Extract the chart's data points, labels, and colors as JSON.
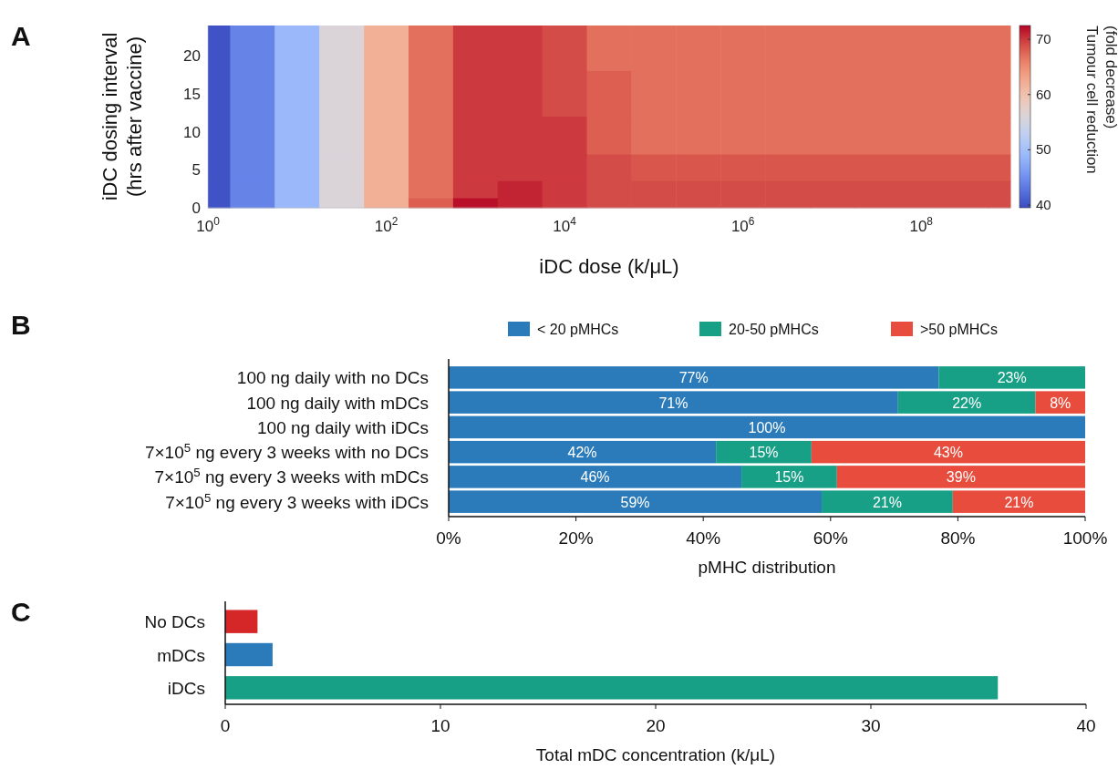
{
  "chart_data": [
    {
      "type": "heatmap",
      "annotations": [
        "A"
      ],
      "xlabel": "iDC dose (k/μL)",
      "ylabel": "iDC dosing interval (hrs after vaccine)",
      "clabel": "Tumour cell reduction (fold decrease)",
      "x": [
        1,
        3.16,
        10,
        31.6,
        100,
        316,
        1000,
        3160,
        10000,
        31600,
        100000,
        316000,
        1000000,
        3160000,
        10000000,
        31600000,
        100000000,
        316000000,
        1000000000
      ],
      "y": [
        21,
        15,
        9,
        5,
        2,
        0.5
      ],
      "cells": [
        [
          40,
          44,
          49,
          56,
          62,
          67,
          70,
          70,
          69,
          67,
          67,
          67,
          67,
          67,
          67,
          67,
          67,
          67,
          67
        ],
        [
          40,
          44,
          49,
          56,
          62,
          67,
          70,
          70,
          69,
          68,
          67,
          67,
          67,
          67,
          67,
          67,
          67,
          67,
          67
        ],
        [
          40,
          44,
          49,
          56,
          62,
          67,
          70,
          70,
          70,
          68,
          67,
          67,
          67,
          67,
          67,
          67,
          67,
          67,
          67
        ],
        [
          40,
          44,
          49,
          56,
          62,
          67,
          70,
          70,
          70,
          69,
          68.5,
          68.5,
          68.5,
          68.5,
          68.5,
          68.5,
          68.5,
          68.5,
          68.5
        ],
        [
          40,
          44,
          49,
          56,
          62,
          67,
          70,
          71,
          70,
          69,
          69,
          69,
          69,
          69,
          69,
          69,
          69,
          69,
          69
        ],
        [
          40,
          44,
          49,
          56,
          62,
          68,
          72,
          71,
          70,
          69,
          69,
          69,
          69,
          69,
          69,
          69,
          69,
          69,
          69
        ]
      ],
      "clim": [
        39.5,
        72.5
      ],
      "cticks": [
        40,
        50,
        60,
        70
      ],
      "xlim": [
        1,
        1000000000
      ],
      "ylim": [
        0,
        24
      ],
      "log": "x",
      "xticks": [
        {
          "value": 1,
          "label": "10$^{0}$"
        },
        {
          "value": 100,
          "label": "10$^{2}$"
        },
        {
          "value": 10000,
          "label": "10$^{4}$"
        },
        {
          "value": 1000000,
          "label": "10$^{6}$"
        },
        {
          "value": 100000000,
          "label": "10$^{8}$"
        }
      ],
      "yticks": [
        0,
        5,
        10,
        15,
        20
      ]
    },
    {
      "type": "bar",
      "orientation": "horizontal",
      "stacked": true,
      "annotations": [
        "B"
      ],
      "xlabel": "pMHC distribution",
      "legend": "top",
      "categories": [
        "100 ng daily with no DCs",
        "100 ng daily with mDCs",
        "100 ng daily with iDCs",
        "7×10$^{5}$ ng every 3 weeks with no DCs",
        "7×10$^{5}$ ng every 3 weeks with mDCs",
        "7×10$^{5}$ ng every 3 weeks with iDCs"
      ],
      "series": [
        {
          "name": "< 20 pMHCs",
          "color": "#2b7bba",
          "values": [
            77,
            70.6,
            100,
            42,
            46,
            58.6
          ],
          "value_labels": [
            "77%",
            "71%",
            "100%",
            "42%",
            "46%",
            "59%"
          ]
        },
        {
          "name": "20-50 pMHCs",
          "color": "#17a085",
          "values": [
            23,
            21.6,
            null,
            15,
            15,
            20.6
          ],
          "value_labels": [
            "23%",
            "22%",
            null,
            "15%",
            "15%",
            "21%"
          ]
        },
        {
          "name": ">50 pMHCs",
          "color": "#e74c3c",
          "values": [
            null,
            7.8,
            null,
            43,
            39,
            20.8
          ],
          "value_labels": [
            null,
            "8%",
            null,
            "43%",
            "39%",
            "21%"
          ]
        }
      ],
      "xlim": [
        0,
        100
      ],
      "xticks": [
        {
          "value": 0,
          "label": "0%"
        },
        {
          "value": 20,
          "label": "20%"
        },
        {
          "value": 40,
          "label": "40%"
        },
        {
          "value": 60,
          "label": "60%"
        },
        {
          "value": 80,
          "label": "80%"
        },
        {
          "value": 100,
          "label": "100%"
        }
      ]
    },
    {
      "type": "bar",
      "orientation": "horizontal",
      "annotations": [
        "C"
      ],
      "xlabel": "Total mDC concentration (k/μL)",
      "categories": [
        "No DCs",
        "mDCs",
        "iDCs"
      ],
      "values": [
        1.5,
        2.2,
        35.9
      ],
      "colors": [
        "#d62728",
        "#2b7bba",
        "#17a085"
      ],
      "xlim": [
        0,
        40
      ],
      "xticks": [
        0,
        10,
        20,
        30,
        40
      ]
    }
  ]
}
